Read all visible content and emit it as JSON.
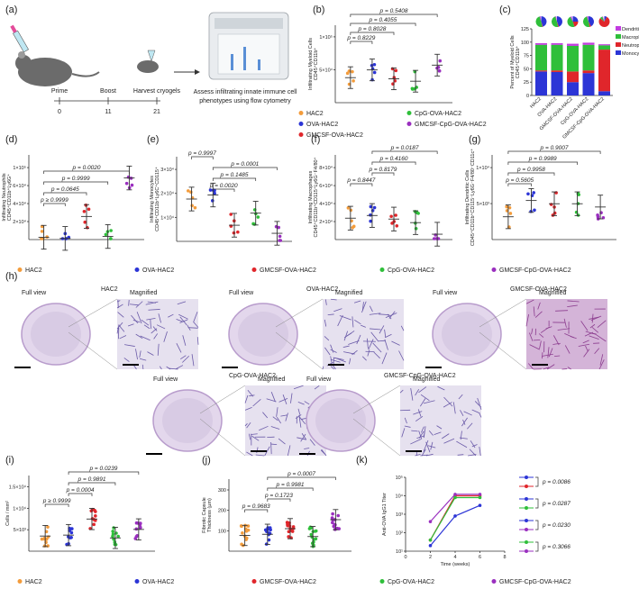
{
  "colors": {
    "HAC2": "#f39c3c",
    "OVA-HAC2": "#2c35d6",
    "GMCSF-OVA-HAC2": "#e0262b",
    "CpG-OVA-HAC2": "#2fbf3a",
    "GMCSF-CpG-OVA-HAC2": "#9a2fbf",
    "Dendritic cells": "#c23be0",
    "Macrophages": "#2fbf3a",
    "Neutrophils": "#e0262b",
    "Monocytes": "#2c35d6"
  },
  "panel_labels": [
    "(a)",
    "(b)",
    "(c)",
    "(d)",
    "(e)",
    "(f)",
    "(g)",
    "(h)",
    "(i)",
    "(j)",
    "(k)"
  ],
  "panel_a": {
    "timeline_labels": [
      "Prime",
      "Boost",
      "Harvest cryogels"
    ],
    "timeline_days": [
      "0",
      "11",
      "21"
    ],
    "assess_text_line1": "Assess infiltrating innate immune cell",
    "assess_text_line2": "phenotypes using flow cytometry"
  },
  "groups": [
    "HAC2",
    "OVA-HAC2",
    "GMCSF-OVA-HAC2",
    "CpG-OVA-HAC2",
    "GMCSF-CpG-OVA-HAC2"
  ],
  "panel_b": {
    "ylabel_line1": "Infiltrating Myeloid Cells",
    "ylabel_line2": "CD45⁺CD11b⁺",
    "yticks": [
      "5×10⁴",
      "1×10⁵"
    ],
    "pvalues": [
      "p = 0.5408",
      "p = 0.4055",
      "p = 0.8028",
      "p = 0.8229"
    ],
    "means": [
      42000,
      55000,
      40000,
      36000,
      63000
    ],
    "ymax": 130000
  },
  "panel_c": {
    "ylabel_line1": "Percent of Myeloid Cells",
    "ylabel_line2": "CD45⁺CD11b⁺",
    "yticks": [
      "0",
      "25",
      "50",
      "75",
      "100",
      "125"
    ],
    "legend": [
      "Dendritic cells",
      "Macrophages",
      "Neutrophils",
      "Monocytes"
    ],
    "stacks": [
      {
        "group": "HAC2",
        "Monocytes": 45,
        "Neutrophils": 2,
        "Macrophages": 48,
        "Dendritic cells": 3
      },
      {
        "group": "OVA-HAC2",
        "Monocytes": 44,
        "Neutrophils": 3,
        "Macrophages": 48,
        "Dendritic cells": 3
      },
      {
        "group": "GMCSF-OVA-HAC2",
        "Monocytes": 25,
        "Neutrophils": 20,
        "Macrophages": 48,
        "Dendritic cells": 4
      },
      {
        "group": "CpG-OVA-HAC2",
        "Monocytes": 42,
        "Neutrophils": 5,
        "Macrophages": 48,
        "Dendritic cells": 4
      },
      {
        "group": "GMCSF-CpG-OVA-HAC2",
        "Monocytes": 8,
        "Neutrophils": 78,
        "Macrophages": 8,
        "Dendritic cells": 2
      }
    ]
  },
  "panel_d": {
    "ylabel_line1": "Infiltrating Neutrophils",
    "ylabel_line2": "CD45⁺CD11b⁺Ly6G⁺",
    "yticks": [
      "2×10⁴",
      "4×10⁴",
      "6×10⁴",
      "1×10⁵"
    ],
    "pvalues": [
      "p = 0.0020",
      "p = 0.9999",
      "p = 0.0645",
      "p ≥ 0.9999"
    ],
    "means": [
      3000,
      1500,
      30000,
      4000,
      80000
    ],
    "ymax": 110000
  },
  "panel_e": {
    "ylabel_line1": "Infiltrating Monocytes",
    "ylabel_line2": "CD45⁺CD11b⁺Ly6C⁺CD115⁺",
    "yticks": [
      "1×10⁴",
      "2×10⁴",
      "3×10⁴"
    ],
    "pvalues": [
      "p = 0.9997",
      "p = 0.0001",
      "p = 0.1485",
      "p = 0.0020"
    ],
    "means": [
      21000,
      23000,
      8000,
      14000,
      4000
    ],
    "ymax": 42000
  },
  "panel_f": {
    "ylabel_line1": "Infiltrating Macrophages",
    "ylabel_line2": "CD45⁺CD11b⁺CD115⁺Ly6G⁻F4/80⁺",
    "yticks": [
      "2×10⁴",
      "4×10⁴",
      "6×10⁴",
      "8×10⁴"
    ],
    "pvalues": [
      "p = 0.0187",
      "p = 0.4160",
      "p = 0.8179",
      "p = 0.8447"
    ],
    "means": [
      24000,
      27000,
      23000,
      19000,
      6000
    ],
    "ymax": 95000
  },
  "panel_g": {
    "ylabel_line1": "Infiltrating Dendritic Cells",
    "ylabel_line2": "CD45⁺CD11b⁺CD115⁻Ly6G⁻F4/80⁻CD11c⁺",
    "yticks": [
      "5×10³",
      "1×10⁴"
    ],
    "pvalues": [
      "p = 0.9007",
      "p = 0.9989",
      "p = 0.9958",
      "p = 0.5605"
    ],
    "means": [
      3500,
      6000,
      5500,
      5500,
      5000
    ],
    "ymax": 13000
  },
  "legend_row": [
    "HAC2",
    "OVA-HAC2",
    "GMCSF-OVA-HAC2",
    "CpG-OVA-HAC2",
    "GMCSF-CpG-OVA-HAC2"
  ],
  "panel_h": {
    "groups": [
      "HAC2",
      "OVA-HAC2",
      "GMCSF-OVA-HAC2",
      "CpG-OVA-HAC2",
      "GMCSF-CpG-OVA-HAC2"
    ],
    "full_view": "Full view",
    "magnified": "Magnified"
  },
  "panel_i": {
    "ylabel": "Cells / mm²",
    "yticks": [
      "5×10³",
      "1×10⁴",
      "1.5×10⁴"
    ],
    "pvalues": [
      "p = 0.0239",
      "p = 0.9891",
      "p = 0.0004",
      "p ≥ 0.9999"
    ],
    "means": [
      3200,
      3400,
      6800,
      2800,
      4600
    ],
    "ymax": 16000
  },
  "panel_j": {
    "ylabel_line1": "Fibrotic Capsule",
    "ylabel_line2": "Thickness (µm)",
    "yticks": [
      "100",
      "200",
      "300"
    ],
    "pvalues": [
      "p = 0.0007",
      "p = 0.9981",
      "p = 0.1723",
      "p = 0.9683"
    ],
    "means": [
      70,
      75,
      100,
      65,
      140
    ],
    "ymax": 320
  },
  "panel_k": {
    "ylabel": "Anti-OVA IgG1 Titer",
    "xlabel": "Time (weeks)",
    "yticks": [
      "10¹",
      "10²",
      "10³",
      "10⁴",
      "10⁵"
    ],
    "xticks": [
      "0",
      "2",
      "4",
      "6",
      "8"
    ],
    "pvalues": [
      "p = 0.0086",
      "p = 0.0287",
      "p = 0.0230",
      "p = 0.3066"
    ],
    "series": [
      {
        "name": "OVA-HAC2",
        "x": [
          2,
          4,
          6
        ],
        "y": [
          20,
          800,
          3000
        ]
      },
      {
        "name": "GMCSF-OVA-HAC2",
        "x": [
          2,
          4,
          6
        ],
        "y": [
          40,
          10000,
          10000
        ]
      },
      {
        "name": "CpG-OVA-HAC2",
        "x": [
          2,
          4,
          6
        ],
        "y": [
          40,
          8000,
          8000
        ]
      },
      {
        "name": "GMCSF-CpG-OVA-HAC2",
        "x": [
          2,
          4,
          6
        ],
        "y": [
          400,
          12000,
          12000
        ]
      }
    ]
  }
}
